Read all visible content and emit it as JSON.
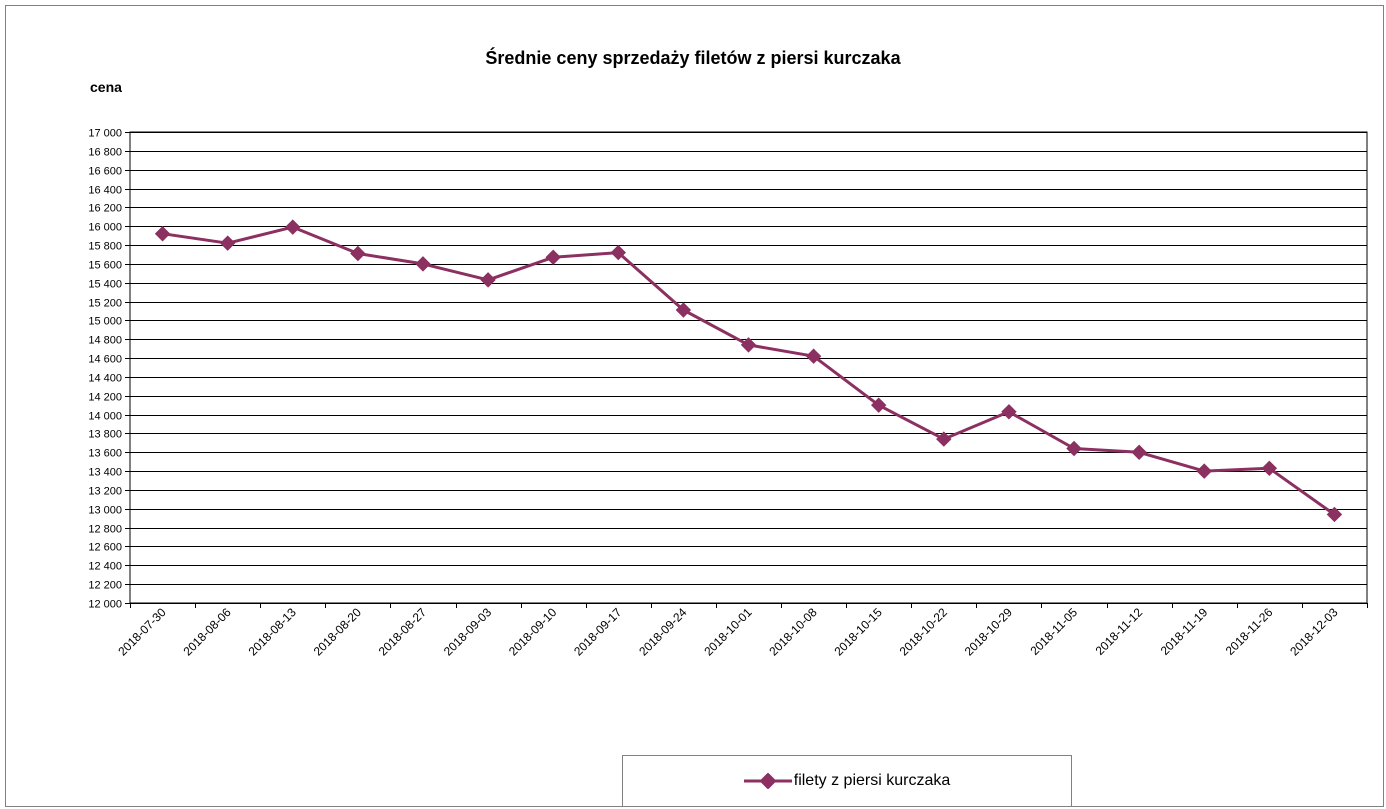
{
  "colors": {
    "series": "#8B3060",
    "grid": "#000000",
    "frame": "#808080"
  },
  "chart_data": {
    "type": "line",
    "title": "Średnie ceny sprzedaży filetów z piersi kurczaka",
    "ylabel": "cena",
    "xlabel": "",
    "ylim": [
      12000,
      17000
    ],
    "ytick_step": 200,
    "grid": true,
    "legend_position": "bottom",
    "categories": [
      "2018-07-30",
      "2018-08-06",
      "2018-08-13",
      "2018-08-20",
      "2018-08-27",
      "2018-09-03",
      "2018-09-10",
      "2018-09-17",
      "2018-09-24",
      "2018-10-01",
      "2018-10-08",
      "2018-10-15",
      "2018-10-22",
      "2018-10-29",
      "2018-11-05",
      "2018-11-12",
      "2018-11-19",
      "2018-11-26",
      "2018-12-03"
    ],
    "series": [
      {
        "name": "filety z piersi kurczaka",
        "values": [
          15920,
          15820,
          15990,
          15710,
          15600,
          15430,
          15670,
          15720,
          15110,
          14740,
          14620,
          14100,
          13740,
          14030,
          13640,
          13600,
          13400,
          13430,
          12940
        ]
      }
    ]
  }
}
